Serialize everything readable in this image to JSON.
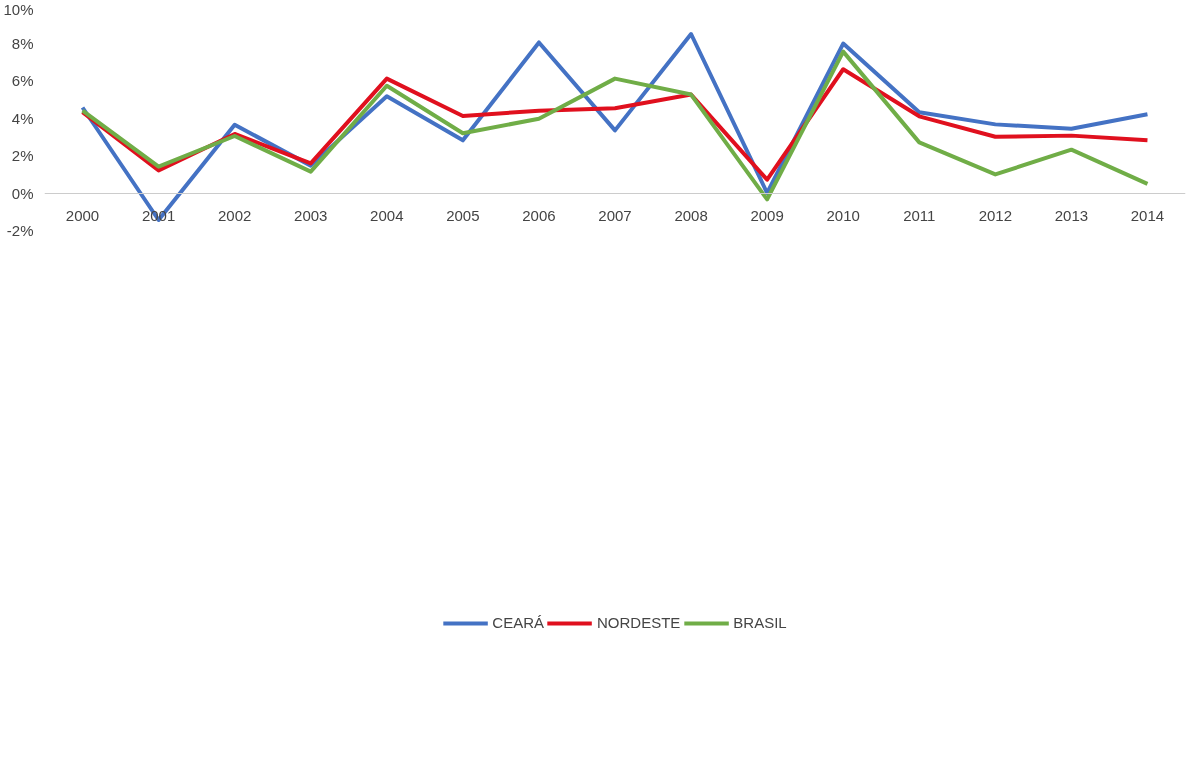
{
  "chart_data": {
    "type": "line",
    "categories": [
      "2000",
      "2001",
      "2002",
      "2003",
      "2004",
      "2005",
      "2006",
      "2007",
      "2008",
      "2009",
      "2010",
      "2011",
      "2012",
      "2013",
      "2014"
    ],
    "series": [
      {
        "name": "CEARÁ",
        "color": "#4472c4",
        "values": [
          4.56,
          -1.44,
          3.64,
          1.46,
          5.16,
          2.81,
          8.03,
          3.34,
          8.48,
          0.0,
          7.97,
          4.31,
          3.66,
          3.43,
          4.2
        ]
      },
      {
        "name": "NORDESTE",
        "color": "#e0101e",
        "values": [
          4.31,
          1.2,
          3.15,
          1.58,
          6.1,
          4.11,
          4.39,
          4.52,
          5.25,
          0.71,
          6.6,
          4.09,
          3.0,
          3.06,
          2.81
        ]
      },
      {
        "name": "BRASIL",
        "color": "#70ad47",
        "values": [
          4.39,
          1.41,
          3.04,
          1.14,
          5.72,
          3.19,
          3.96,
          6.1,
          5.25,
          -0.34,
          7.54,
          2.7,
          0.99,
          2.31,
          0.49
        ]
      }
    ],
    "ylim": [
      -2,
      10
    ],
    "yticks": [
      {
        "value": -2,
        "label": "-2%"
      },
      {
        "value": 0,
        "label": "0%"
      },
      {
        "value": 2,
        "label": "2%"
      },
      {
        "value": 4,
        "label": "4%"
      },
      {
        "value": 6,
        "label": "6%"
      },
      {
        "value": 8,
        "label": "8%"
      },
      {
        "value": 10,
        "label": "10%"
      }
    ],
    "grid": false,
    "legend": "bottom",
    "marker": "none",
    "line_style": "solid"
  }
}
